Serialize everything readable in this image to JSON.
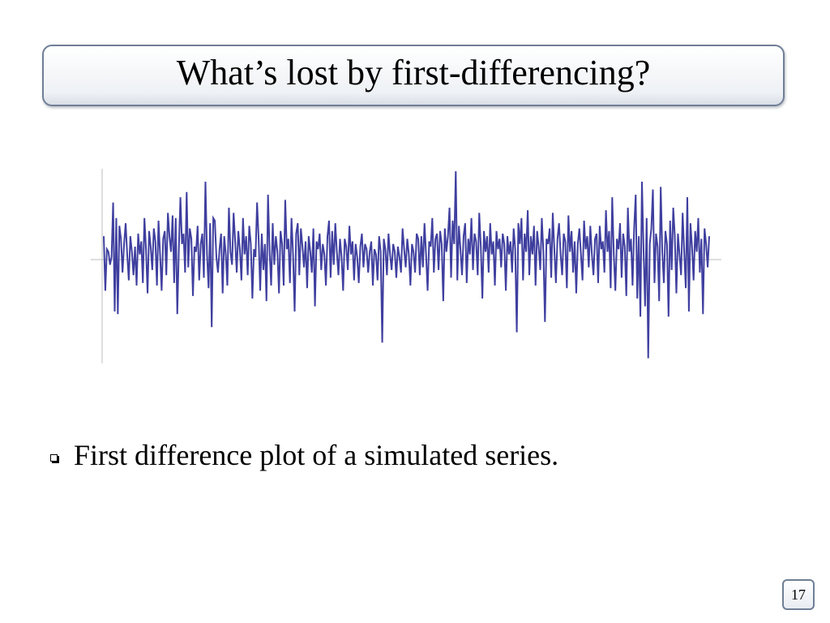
{
  "slide": {
    "title": "What’s lost by first-differencing?",
    "bullet": "First difference plot of a simulated series.",
    "page_number": "17"
  },
  "colors": {
    "series": "#3f3f9f",
    "axis": "#bdbdbd",
    "title_border": "#6f7f96"
  },
  "chart_data": {
    "type": "line",
    "title": "",
    "xlabel": "",
    "ylabel": "",
    "ylim": [
      -4.0,
      3.5
    ],
    "grid": false,
    "legend": "none",
    "series": [
      {
        "values": [
          0.9,
          -1.2,
          0.4,
          0.3,
          -0.2,
          0.1,
          2.2,
          -2.0,
          1.6,
          -2.1,
          1.3,
          0.8,
          -0.5,
          0.6,
          1.4,
          0.2,
          -0.8,
          0.9,
          0.3,
          -0.6,
          0.5,
          -1.0,
          1.0,
          0.2,
          0.7,
          -0.9,
          1.6,
          0.4,
          -1.3,
          1.1,
          0.5,
          -0.4,
          1.2,
          0.7,
          -1.0,
          1.5,
          0.2,
          -1.2,
          0.8,
          1.1,
          -0.6,
          1.8,
          0.9,
          0.3,
          1.7,
          -0.9,
          1.6,
          -2.1,
          0.4,
          2.4,
          0.6,
          1.0,
          -0.5,
          2.6,
          -0.3,
          1.2,
          0.8,
          -1.4,
          0.5,
          0.3,
          1.3,
          -0.8,
          0.6,
          1.0,
          -0.7,
          3.0,
          0.2,
          -1.1,
          1.4,
          -2.6,
          1.6,
          1.5,
          0.1,
          -0.5,
          0.4,
          1.0,
          -1.3,
          0.9,
          0.2,
          -1.0,
          2.0,
          0.3,
          -0.2,
          1.8,
          0.7,
          -0.5,
          1.1,
          0.4,
          -0.8,
          1.6,
          0.2,
          0.9,
          -0.6,
          1.3,
          0.6,
          -1.5,
          0.4,
          0.1,
          2.2,
          0.8,
          -1.2,
          1.0,
          -0.4,
          0.6,
          -1.6,
          2.5,
          0.3,
          -1.0,
          1.4,
          -0.2,
          0.9,
          0.3,
          -1.3,
          1.1,
          0.6,
          -1.0,
          2.3,
          0.4,
          0.8,
          -0.9,
          1.6,
          0.2,
          -2.0,
          1.0,
          1.4,
          -0.6,
          1.2,
          0.5,
          -0.3,
          0.7,
          -1.1,
          0.9,
          0.3,
          -0.5,
          1.2,
          -1.8,
          0.7,
          0.4,
          1.0,
          -0.4,
          0.6,
          0.2,
          -1.0,
          0.9,
          1.5,
          -0.7,
          1.1,
          -0.2,
          1.4,
          0.3,
          -0.6,
          0.8,
          0.1,
          -1.2,
          0.8,
          0.5,
          -0.4,
          1.3,
          0.2,
          0.7,
          -0.8,
          0.6,
          0.1,
          -0.9,
          0.5,
          1.0,
          -0.3,
          0.6,
          0.4,
          -0.5,
          0.3,
          0.7,
          -1.0,
          0.4,
          0.2,
          -0.8,
          0.9,
          0.3,
          -3.2,
          0.8,
          0.4,
          -0.6,
          1.0,
          0.2,
          -0.4,
          0.6,
          0.3,
          -0.7,
          0.5,
          0.1,
          -0.5,
          1.2,
          0.4,
          -0.3,
          0.8,
          0.2,
          -1.0,
          0.6,
          0.3,
          -0.5,
          1.0,
          0.8,
          -0.6,
          0.9,
          -0.3,
          1.4,
          0.2,
          -1.2,
          0.7,
          0.5,
          1.6,
          -0.5,
          0.8,
          1.0,
          -0.4,
          1.1,
          0.6,
          -1.6,
          1.2,
          0.3,
          0.9,
          2.0,
          -0.7,
          1.5,
          0.6,
          3.4,
          -0.8,
          1.3,
          0.4,
          -0.6,
          0.9,
          1.4,
          -0.9,
          0.8,
          0.2,
          1.6,
          -0.4,
          1.0,
          0.7,
          -0.6,
          1.8,
          0.5,
          -1.5,
          1.1,
          0.3,
          0.9,
          -0.5,
          1.4,
          0.2,
          0.7,
          -1.0,
          1.1,
          0.4,
          0.8,
          -0.3,
          1.0,
          0.6,
          -1.2,
          0.9,
          0.2,
          0.7,
          -0.5,
          1.2,
          0.4,
          -2.8,
          1.4,
          0.6,
          1.6,
          -0.8,
          1.0,
          0.3,
          1.9,
          -0.6,
          0.9,
          0.2,
          1.3,
          -1.0,
          1.1,
          0.5,
          -0.4,
          1.6,
          0.3,
          -2.4,
          0.8,
          0.6,
          1.2,
          -0.7,
          1.8,
          0.4,
          -0.9,
          0.8,
          1.4,
          0.2,
          -0.6,
          1.0,
          0.7,
          -1.1,
          1.7,
          0.3,
          1.1,
          -0.5,
          0.7,
          -1.3,
          0.6,
          1.2,
          0.2,
          -0.8,
          1.5,
          0.4,
          0.9,
          -0.3,
          1.3,
          0.2,
          -0.6,
          0.8,
          1.0,
          -0.9,
          1.3,
          0.4,
          0.7,
          -0.5,
          1.9,
          0.3,
          1.1,
          -1.1,
          2.4,
          0.2,
          -1.2,
          0.8,
          0.4,
          1.4,
          -0.7,
          1.0,
          0.5,
          -1.4,
          2.0,
          0.3,
          0.8,
          -1.0,
          1.2,
          2.5,
          -1.5,
          0.9,
          -2.2,
          3.0,
          0.4,
          -1.8,
          1.6,
          -3.8,
          0.6,
          1.2,
          2.7,
          -0.9,
          1.0,
          0.5,
          -1.6,
          2.8,
          0.3,
          -0.9,
          1.1,
          0.6,
          -2.2,
          1.5,
          -0.4,
          2.0,
          0.9,
          -1.3,
          1.0,
          0.2,
          -0.6,
          1.8,
          0.3,
          -1.1,
          2.4,
          -2.0,
          1.4,
          0.5,
          -0.8,
          1.1,
          0.3,
          1.6,
          -0.5,
          0.8,
          -2.1,
          1.2,
          0.6,
          -0.3,
          0.9
        ]
      }
    ]
  }
}
